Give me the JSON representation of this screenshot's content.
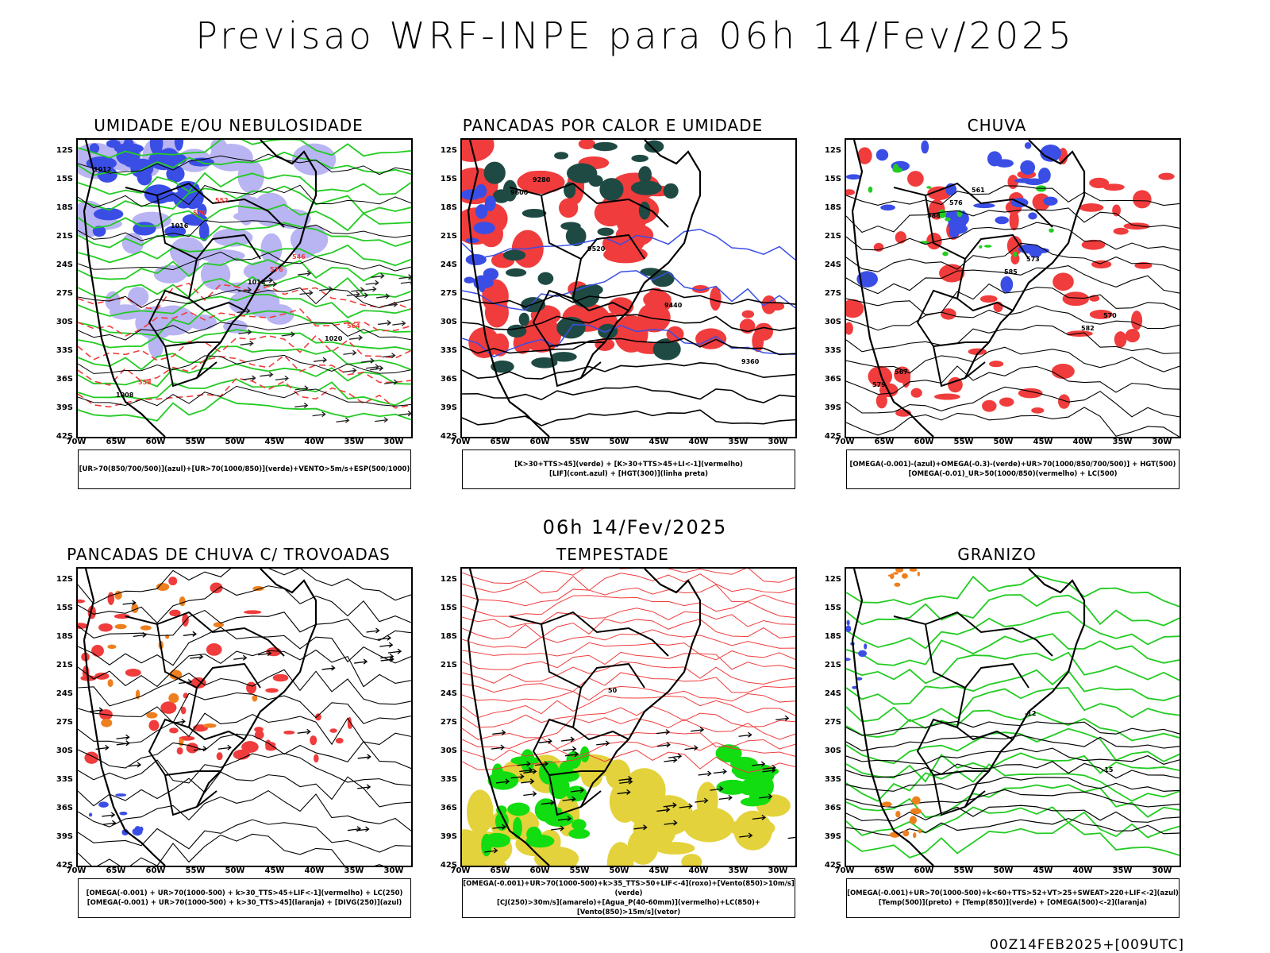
{
  "header": {
    "title": "Previsao WRF-INPE  para 06h 14/Fev/2025",
    "subtitle": "06h 14/Fev/2025",
    "footer": "00Z14FEB2025+[009UTC]"
  },
  "axes": {
    "lat_labels": [
      "12S",
      "15S",
      "18S",
      "21S",
      "24S",
      "27S",
      "30S",
      "33S",
      "36S",
      "39S",
      "42S"
    ],
    "lon_labels": [
      "70W",
      "65W",
      "60W",
      "55W",
      "50W",
      "45W",
      "40W",
      "35W",
      "30W"
    ]
  },
  "colors": {
    "blue": "#3a4ee6",
    "light_blue": "#b9b4f2",
    "green": "#22cc22",
    "red": "#f03c3c",
    "dark_teal": "#1f4a44",
    "orange": "#ee7f1e",
    "yellow": "#e3d23b",
    "bright_green": "#11dd11"
  },
  "panels": [
    {
      "id": "umidade",
      "title": "UMIDADE E/OU NEBULOSIDADE",
      "legend": [
        "[UR>70(850/700/500)](azul)+[UR>70(1000/850)](verde)+VENTO>5m/s+ESP(500/1000)"
      ],
      "contour_labels": [
        "1012",
        "1016",
        "1018",
        "1020",
        "1008",
        "570",
        "576",
        "564",
        "558",
        "552",
        "546"
      ]
    },
    {
      "id": "pancadas-calor",
      "title": "PANCADAS POR CALOR E UMIDADE",
      "legend": [
        "[K>30+TTS>45](verde) + [K>30+TTS>45+LI<-1](vermelho)",
        "[LIF](cont.azul) + [HGT(300)](linha preta)"
      ],
      "contour_labels": [
        "9600",
        "9520",
        "9440",
        "9360",
        "9280"
      ]
    },
    {
      "id": "chuva",
      "title": "CHUVA",
      "legend": [
        "[OMEGA(-0.001)-(azul)+OMEGA(-0.3)-(verde)+UR>70(1000/850/700/500)] + HGT(500)",
        "[OMEGA(-0.01)_UR>50(1000/850)(vermelho) + LC(500)"
      ],
      "contour_labels": [
        "588",
        "585",
        "582",
        "579",
        "576",
        "573",
        "570",
        "567",
        "561"
      ]
    },
    {
      "id": "trovoadas",
      "title": "PANCADAS DE CHUVA C/ TROVOADAS",
      "legend": [
        "[OMEGA(-0.001) + UR>70(1000-500) + k>30_TTS>45+LIF<-1](vermelho) + LC(250)",
        "[OMEGA(-0.001) + UR>70(1000-500) + k>30_TTS>45](laranja) + [DIVG(250)](azul)"
      ],
      "contour_labels": []
    },
    {
      "id": "tempestade",
      "title": "TEMPESTADE",
      "legend": [
        "[OMEGA(-0.001)+UR>70(1000-500)+k>35_TTS>50+LIF<-4](roxo)+[Vento(850)>10m/s](verde)",
        "[CJ(250)>30m/s](amarelo)+[Agua_P(40-60mm)](vermelho)+LC(850)+[Vento(850)>15m/s](vetor)"
      ],
      "contour_labels": [
        "50"
      ]
    },
    {
      "id": "granizo",
      "title": "GRANIZO",
      "legend": [
        "[OMEGA(-0.001)+UR>70(1000-500)+k<60+TTS>52+VT>25+SWEAT>220+LIF<-2](azul)",
        "[Temp(500)](preto) + [Temp(850)](verde) + [OMEGA(500)<-2](laranja)"
      ],
      "contour_labels": [
        "-12",
        "-15"
      ]
    }
  ]
}
